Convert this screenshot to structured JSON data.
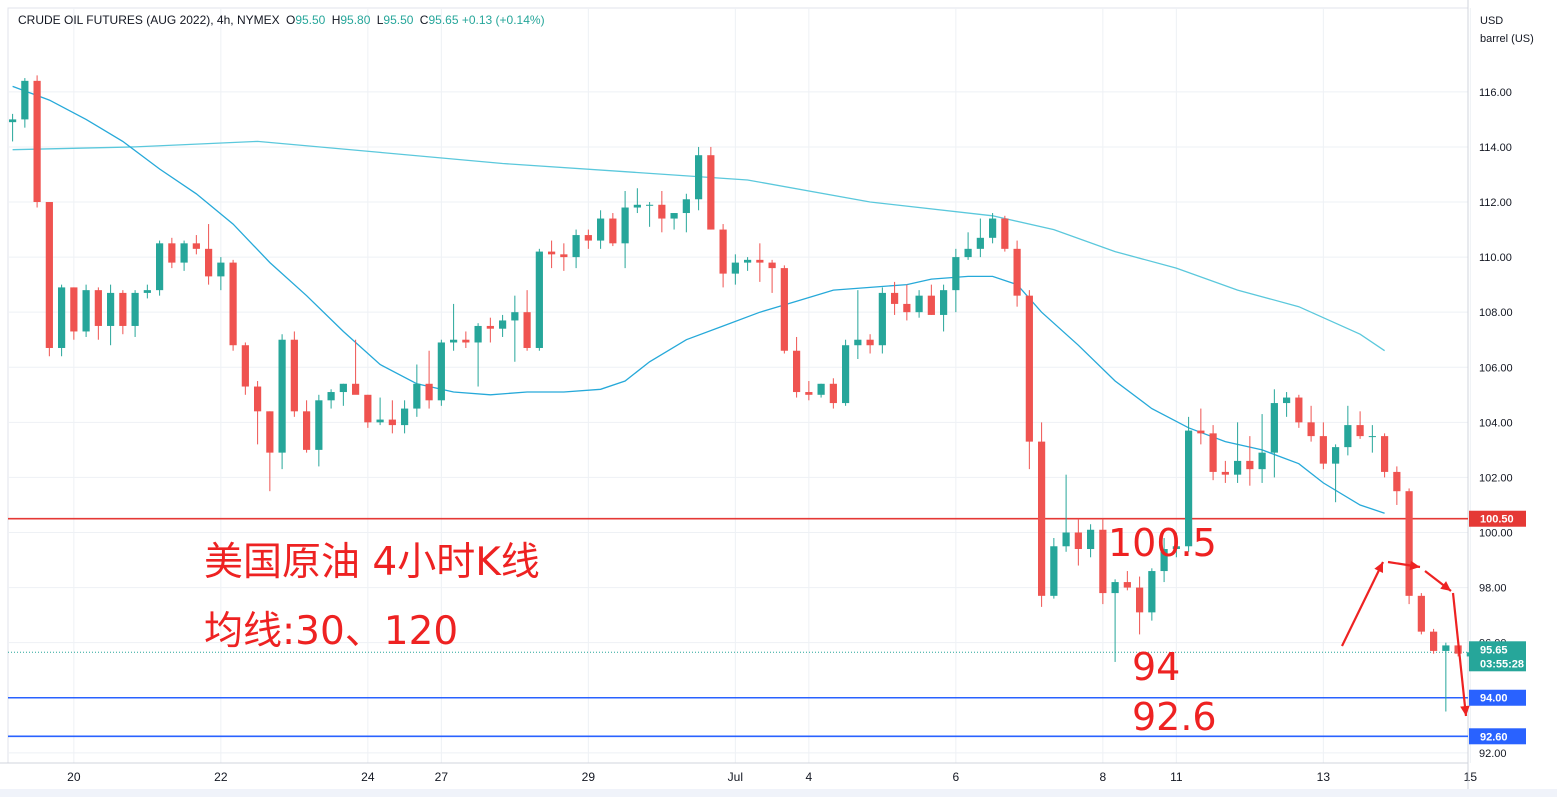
{
  "legend": {
    "symbol": "CRUDE OIL FUTURES (AUG 2022), 4h, NYMEX",
    "open_label": "O",
    "open": "95.50",
    "high_label": "H",
    "high": "95.80",
    "low_label": "L",
    "low": "95.50",
    "close_label": "C",
    "close": "95.65",
    "change": "+0.13 (+0.14%)"
  },
  "axis_unit": {
    "line1": "USD",
    "line2": "barrel (US)"
  },
  "annotations": {
    "title_line1": "美国原油 4小时K线",
    "title_line2": "均线:30、120",
    "level_upper": "100.5",
    "level_94": "94",
    "level_926": "92.6"
  },
  "price_badges": {
    "current_price": "95.65",
    "countdown": "03:55:28",
    "resistance": "100.50",
    "support_1": "94.00",
    "support_2": "92.60"
  },
  "colors": {
    "up": "#26a69a",
    "down": "#ef5350",
    "ma_fast": "#26a9d9",
    "ma_slow": "#5bc8dc",
    "resistance_line": "#e53935",
    "support_line": "#2962ff",
    "annotation": "#ee2222",
    "grid": "#eef1f5"
  },
  "chart_data": {
    "type": "candlestick",
    "ylim": [
      91.5,
      118.5
    ],
    "y_ticks": [
      "92.00",
      "94.00",
      "96.00",
      "98.00",
      "100.00",
      "102.00",
      "104.00",
      "106.00",
      "108.00",
      "110.00",
      "112.00",
      "114.00",
      "116.00"
    ],
    "x_ticks": [
      {
        "label": "20",
        "i": 5
      },
      {
        "label": "22",
        "i": 17
      },
      {
        "label": "24",
        "i": 29
      },
      {
        "label": "27",
        "i": 35
      },
      {
        "label": "29",
        "i": 47
      },
      {
        "label": "Jul",
        "i": 59
      },
      {
        "label": "4",
        "i": 65
      },
      {
        "label": "6",
        "i": 77
      },
      {
        "label": "8",
        "i": 89
      },
      {
        "label": "11",
        "i": 95
      },
      {
        "label": "13",
        "i": 107
      },
      {
        "label": "15",
        "i": 119
      }
    ],
    "bar_count": 120,
    "candles": [
      [
        114.9,
        115.2,
        114.2,
        115.0
      ],
      [
        115.0,
        116.5,
        114.7,
        116.4
      ],
      [
        116.4,
        116.6,
        111.8,
        112.0
      ],
      [
        112.0,
        112.0,
        106.4,
        106.7
      ],
      [
        106.7,
        109.0,
        106.4,
        108.9
      ],
      [
        108.9,
        108.9,
        107.0,
        107.3
      ],
      [
        107.3,
        109.0,
        107.1,
        108.8
      ],
      [
        108.8,
        108.9,
        107.0,
        107.5
      ],
      [
        107.5,
        109.0,
        106.8,
        108.7
      ],
      [
        108.7,
        108.8,
        107.2,
        107.5
      ],
      [
        107.5,
        108.8,
        107.1,
        108.7
      ],
      [
        108.7,
        109.0,
        108.5,
        108.8
      ],
      [
        108.8,
        110.6,
        108.6,
        110.5
      ],
      [
        110.5,
        110.7,
        109.6,
        109.8
      ],
      [
        109.8,
        110.6,
        109.5,
        110.5
      ],
      [
        110.5,
        110.8,
        110.1,
        110.3
      ],
      [
        110.3,
        111.2,
        109.0,
        109.3
      ],
      [
        109.3,
        110.0,
        108.8,
        109.8
      ],
      [
        109.8,
        109.9,
        106.6,
        106.8
      ],
      [
        106.8,
        106.9,
        105.0,
        105.3
      ],
      [
        105.3,
        105.5,
        103.2,
        104.4
      ],
      [
        104.4,
        104.4,
        101.5,
        102.9
      ],
      [
        102.9,
        107.2,
        102.3,
        107.0
      ],
      [
        107.0,
        107.3,
        104.2,
        104.4
      ],
      [
        104.4,
        104.8,
        102.9,
        103.0
      ],
      [
        103.0,
        105.0,
        102.4,
        104.8
      ],
      [
        104.8,
        105.2,
        104.5,
        105.1
      ],
      [
        105.1,
        105.4,
        104.6,
        105.4
      ],
      [
        105.4,
        107.0,
        105.2,
        105.0
      ],
      [
        105.0,
        105.0,
        103.8,
        104.0
      ],
      [
        104.0,
        104.9,
        103.9,
        104.1
      ],
      [
        104.1,
        104.8,
        103.6,
        103.9
      ],
      [
        103.9,
        104.8,
        103.6,
        104.5
      ],
      [
        104.5,
        106.1,
        104.2,
        105.4
      ],
      [
        105.4,
        106.6,
        104.5,
        104.8
      ],
      [
        104.8,
        107.0,
        104.6,
        106.9
      ],
      [
        106.9,
        108.3,
        106.6,
        107.0
      ],
      [
        107.0,
        107.3,
        106.7,
        106.9
      ],
      [
        106.9,
        107.6,
        105.3,
        107.5
      ],
      [
        107.5,
        107.8,
        106.9,
        107.4
      ],
      [
        107.4,
        107.9,
        107.1,
        107.7
      ],
      [
        107.7,
        108.6,
        106.2,
        108.0
      ],
      [
        108.0,
        108.8,
        106.6,
        106.7
      ],
      [
        106.7,
        110.3,
        106.6,
        110.2
      ],
      [
        110.2,
        110.6,
        109.6,
        110.1
      ],
      [
        110.1,
        110.5,
        109.5,
        110.0
      ],
      [
        110.0,
        111.0,
        109.6,
        110.8
      ],
      [
        110.8,
        111.0,
        110.3,
        110.6
      ],
      [
        110.6,
        111.7,
        110.3,
        111.4
      ],
      [
        111.4,
        111.6,
        110.4,
        110.5
      ],
      [
        110.5,
        112.4,
        109.6,
        111.8
      ],
      [
        111.8,
        112.5,
        111.6,
        111.9
      ],
      [
        111.9,
        112.0,
        111.1,
        111.9
      ],
      [
        111.9,
        112.4,
        110.9,
        111.4
      ],
      [
        111.4,
        111.6,
        111.0,
        111.6
      ],
      [
        111.6,
        112.3,
        110.9,
        112.1
      ],
      [
        112.1,
        114.0,
        111.7,
        113.7
      ],
      [
        113.7,
        114.0,
        111.0,
        111.0
      ],
      [
        111.0,
        111.2,
        108.9,
        109.4
      ],
      [
        109.4,
        110.1,
        109.0,
        109.8
      ],
      [
        109.8,
        110.0,
        109.5,
        109.9
      ],
      [
        109.9,
        110.5,
        109.1,
        109.8
      ],
      [
        109.8,
        109.9,
        108.7,
        109.6
      ],
      [
        109.6,
        109.7,
        106.5,
        106.6
      ],
      [
        106.6,
        107.1,
        104.9,
        105.1
      ],
      [
        105.1,
        105.5,
        104.8,
        105.0
      ],
      [
        105.0,
        105.4,
        104.9,
        105.4
      ],
      [
        105.4,
        105.6,
        104.5,
        104.7
      ],
      [
        104.7,
        107.0,
        104.6,
        106.8
      ],
      [
        106.8,
        108.8,
        106.3,
        107.0
      ],
      [
        107.0,
        107.2,
        106.5,
        106.8
      ],
      [
        106.8,
        108.9,
        106.5,
        108.7
      ],
      [
        108.7,
        109.1,
        107.9,
        108.3
      ],
      [
        108.3,
        109.0,
        107.7,
        108.0
      ],
      [
        108.0,
        108.8,
        107.8,
        108.6
      ],
      [
        108.6,
        109.0,
        107.9,
        107.9
      ],
      [
        107.9,
        109.0,
        107.3,
        108.8
      ],
      [
        108.8,
        110.3,
        108.0,
        110.0
      ],
      [
        110.0,
        110.9,
        109.9,
        110.3
      ],
      [
        110.3,
        111.4,
        110.0,
        110.7
      ],
      [
        110.7,
        111.6,
        110.5,
        111.4
      ],
      [
        111.4,
        111.5,
        110.2,
        110.3
      ],
      [
        110.3,
        110.6,
        108.2,
        108.6
      ],
      [
        108.6,
        108.8,
        102.3,
        103.3
      ],
      [
        103.3,
        104.0,
        97.3,
        97.7
      ],
      [
        97.7,
        99.8,
        97.6,
        99.5
      ],
      [
        99.5,
        102.1,
        99.3,
        100.0
      ],
      [
        100.0,
        100.5,
        98.8,
        99.4
      ],
      [
        99.4,
        100.3,
        99.1,
        100.1
      ],
      [
        100.1,
        100.5,
        97.4,
        97.8
      ],
      [
        97.8,
        98.3,
        95.3,
        98.2
      ],
      [
        98.2,
        98.6,
        97.9,
        98.0
      ],
      [
        98.0,
        98.4,
        96.3,
        97.1
      ],
      [
        97.1,
        98.7,
        96.8,
        98.6
      ],
      [
        98.6,
        99.8,
        98.2,
        99.4
      ],
      [
        99.4,
        100.0,
        99.1,
        99.5
      ],
      [
        99.5,
        104.2,
        99.3,
        103.7
      ],
      [
        103.7,
        104.5,
        103.2,
        103.6
      ],
      [
        103.6,
        103.9,
        101.9,
        102.2
      ],
      [
        102.2,
        102.6,
        101.8,
        102.1
      ],
      [
        102.1,
        104.0,
        101.8,
        102.6
      ],
      [
        102.6,
        103.5,
        101.7,
        102.3
      ],
      [
        102.3,
        104.3,
        101.8,
        102.9
      ],
      [
        102.9,
        105.2,
        102.0,
        104.7
      ],
      [
        104.7,
        105.1,
        104.2,
        104.9
      ],
      [
        104.9,
        105.0,
        103.8,
        104.0
      ],
      [
        104.0,
        104.6,
        103.3,
        103.5
      ],
      [
        103.5,
        104.0,
        102.3,
        102.5
      ],
      [
        102.5,
        103.2,
        101.1,
        103.1
      ],
      [
        103.1,
        104.6,
        102.8,
        103.9
      ],
      [
        103.9,
        104.4,
        103.4,
        103.5
      ],
      [
        103.5,
        103.9,
        102.9,
        103.5
      ],
      [
        103.5,
        103.6,
        102.0,
        102.2
      ],
      [
        102.2,
        102.4,
        101.0,
        101.5
      ],
      [
        101.5,
        101.6,
        97.4,
        97.7
      ],
      [
        97.7,
        97.8,
        96.3,
        96.4
      ],
      [
        96.4,
        96.5,
        95.6,
        95.7
      ],
      [
        95.7,
        96.0,
        93.5,
        95.9
      ],
      [
        95.9,
        96.1,
        95.5,
        95.6
      ],
      [
        95.5,
        95.8,
        95.5,
        95.65
      ]
    ],
    "ma30": [
      [
        0,
        116.2
      ],
      [
        3,
        115.7
      ],
      [
        6,
        115.0
      ],
      [
        9,
        114.2
      ],
      [
        12,
        113.2
      ],
      [
        15,
        112.3
      ],
      [
        18,
        111.2
      ],
      [
        21,
        109.8
      ],
      [
        24,
        108.6
      ],
      [
        27,
        107.3
      ],
      [
        30,
        106.1
      ],
      [
        33,
        105.4
      ],
      [
        36,
        105.1
      ],
      [
        39,
        105.0
      ],
      [
        42,
        105.1
      ],
      [
        45,
        105.1
      ],
      [
        48,
        105.2
      ],
      [
        50,
        105.5
      ],
      [
        52,
        106.2
      ],
      [
        55,
        107.0
      ],
      [
        58,
        107.5
      ],
      [
        61,
        108.0
      ],
      [
        64,
        108.4
      ],
      [
        67,
        108.8
      ],
      [
        70,
        108.9
      ],
      [
        73,
        109.0
      ],
      [
        75,
        109.2
      ],
      [
        78,
        109.3
      ],
      [
        80,
        109.3
      ],
      [
        82,
        109.0
      ],
      [
        84,
        108.0
      ],
      [
        87,
        106.8
      ],
      [
        90,
        105.5
      ],
      [
        93,
        104.5
      ],
      [
        96,
        103.8
      ],
      [
        99,
        103.3
      ],
      [
        102,
        103.0
      ],
      [
        105,
        102.5
      ],
      [
        107,
        101.8
      ],
      [
        110,
        101.0
      ],
      [
        112,
        100.7
      ]
    ],
    "ma120": [
      [
        0,
        113.9
      ],
      [
        10,
        114.0
      ],
      [
        20,
        114.2
      ],
      [
        30,
        113.8
      ],
      [
        40,
        113.4
      ],
      [
        50,
        113.1
      ],
      [
        60,
        112.8
      ],
      [
        70,
        112.0
      ],
      [
        80,
        111.5
      ],
      [
        85,
        111.0
      ],
      [
        90,
        110.2
      ],
      [
        95,
        109.6
      ],
      [
        100,
        108.8
      ],
      [
        105,
        108.2
      ],
      [
        108,
        107.6
      ],
      [
        110,
        107.2
      ],
      [
        112,
        106.6
      ]
    ],
    "levels": [
      {
        "value": 100.5,
        "kind": "resistance"
      },
      {
        "value": 94.0,
        "kind": "support"
      },
      {
        "value": 92.6,
        "kind": "support"
      }
    ],
    "current": 95.65
  }
}
